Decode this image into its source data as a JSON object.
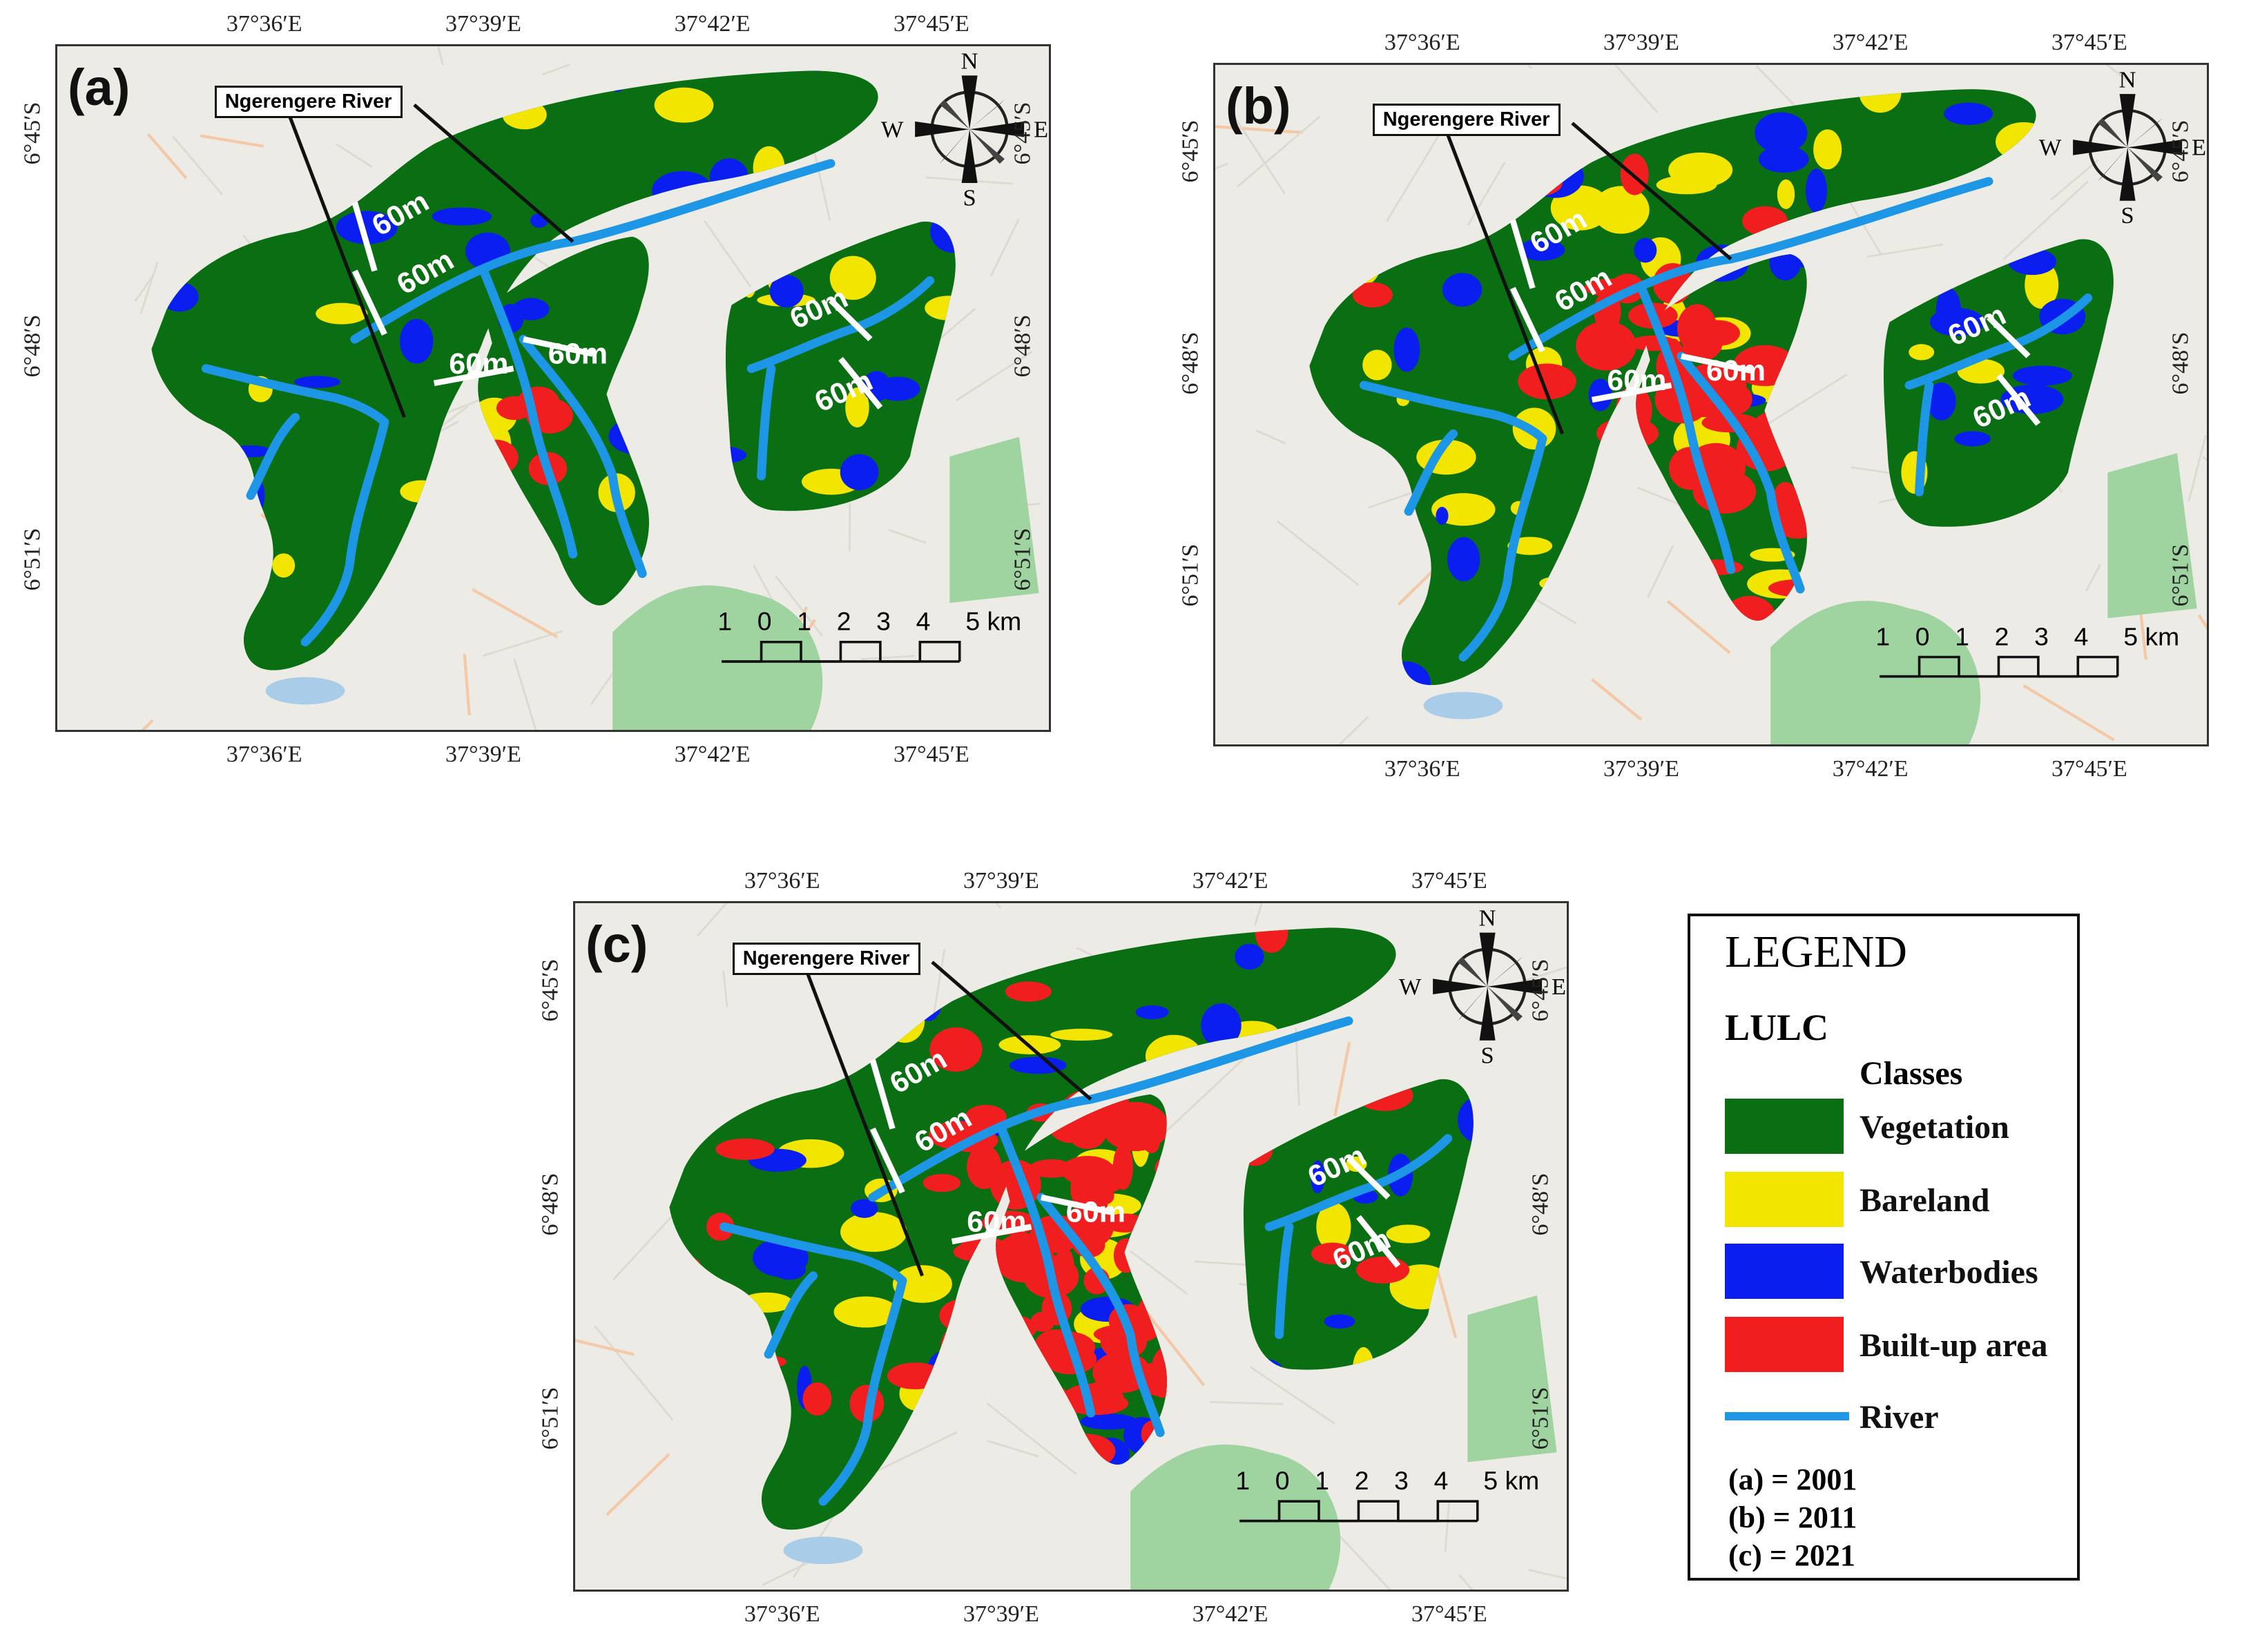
{
  "panels": [
    {
      "label": "(a)",
      "river_label": "Ngerengere River",
      "lon_ticks": [
        "37°36′E",
        "37°39′E",
        "37°42′E",
        "37°45′E"
      ],
      "lat_ticks": [
        "6°45′S",
        "6°48′S",
        "6°51′S"
      ],
      "buffer_labels": [
        "60m",
        "60m",
        "60m",
        "60m",
        "60m",
        "60m"
      ],
      "scale_numbers": [
        "1",
        "0",
        "1",
        "2",
        "3",
        "4",
        "5 km"
      ],
      "compass": {
        "n": "N",
        "s": "S",
        "e": "E",
        "w": "W"
      }
    },
    {
      "label": "(b)",
      "river_label": "Ngerengere River",
      "lon_ticks": [
        "37°36′E",
        "37°39′E",
        "37°42′E",
        "37°45′E"
      ],
      "lat_ticks": [
        "6°45′S",
        "6°48′S",
        "6°51′S"
      ],
      "buffer_labels": [
        "60m",
        "60m",
        "60m",
        "60m",
        "60m",
        "60m"
      ],
      "scale_numbers": [
        "1",
        "0",
        "1",
        "2",
        "3",
        "4",
        "5 km"
      ],
      "compass": {
        "n": "N",
        "s": "S",
        "e": "E",
        "w": "W"
      }
    },
    {
      "label": "(c)",
      "river_label": "Ngerengere River",
      "lon_ticks": [
        "37°36′E",
        "37°39′E",
        "37°42′E",
        "37°45′E"
      ],
      "lat_ticks": [
        "6°45′S",
        "6°48′S",
        "6°51′S"
      ],
      "buffer_labels": [
        "60m",
        "60m",
        "60m",
        "60m",
        "60m",
        "60m"
      ],
      "scale_numbers": [
        "1",
        "0",
        "1",
        "2",
        "3",
        "4",
        "5 km"
      ],
      "compass": {
        "n": "N",
        "s": "S",
        "e": "E",
        "w": "W"
      }
    }
  ],
  "legend": {
    "title": "LEGEND",
    "subtitle": "LULC",
    "classes_header": "Classes",
    "classes": [
      {
        "name": "Vegetation",
        "color": "#0a6e12"
      },
      {
        "name": "Bareland",
        "color": "#f2e600"
      },
      {
        "name": "Waterbodies",
        "color": "#0a1ef0"
      },
      {
        "name": "Built-up area",
        "color": "#f01e1e"
      }
    ],
    "river": {
      "name": "River",
      "color": "#1e96e6"
    },
    "years": [
      "(a) = 2001",
      "(b) = 2011",
      "(c) = 2021"
    ]
  },
  "colors": {
    "vegetation": "#0a6e12",
    "bareland": "#f2e600",
    "waterbodies": "#0a1ef0",
    "builtup": "#f01e1e",
    "river": "#1e96e6",
    "basemap": "#ecebe6",
    "park": "#9fd3a0"
  }
}
